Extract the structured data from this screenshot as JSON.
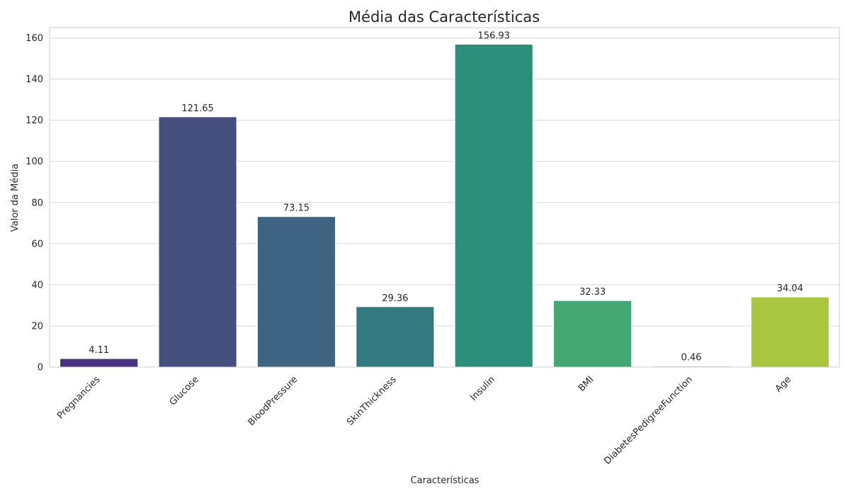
{
  "chart_data": {
    "type": "bar",
    "title": "Média das Características",
    "xlabel": "Características",
    "ylabel": "Valor da Média",
    "categories": [
      "Pregnancies",
      "Glucose",
      "BloodPressure",
      "SkinThickness",
      "Insulin",
      "BMI",
      "DiabetesPedigreeFunction",
      "Age"
    ],
    "values": [
      4.11,
      121.65,
      73.15,
      29.36,
      156.93,
      32.33,
      0.46,
      34.04
    ],
    "data_labels": [
      "4.11",
      "121.65",
      "73.15",
      "29.36",
      "156.93",
      "32.33",
      "0.46",
      "34.04"
    ],
    "colors": [
      "#46327e",
      "#46507e",
      "#3e6482",
      "#327a80",
      "#2e8e7c",
      "#45a874",
      "#95cd62",
      "#a8c63f"
    ],
    "yticks": [
      0,
      20,
      40,
      60,
      80,
      100,
      120,
      140,
      160
    ],
    "ylim": [
      0,
      165
    ],
    "grid": true,
    "legend": "none"
  }
}
